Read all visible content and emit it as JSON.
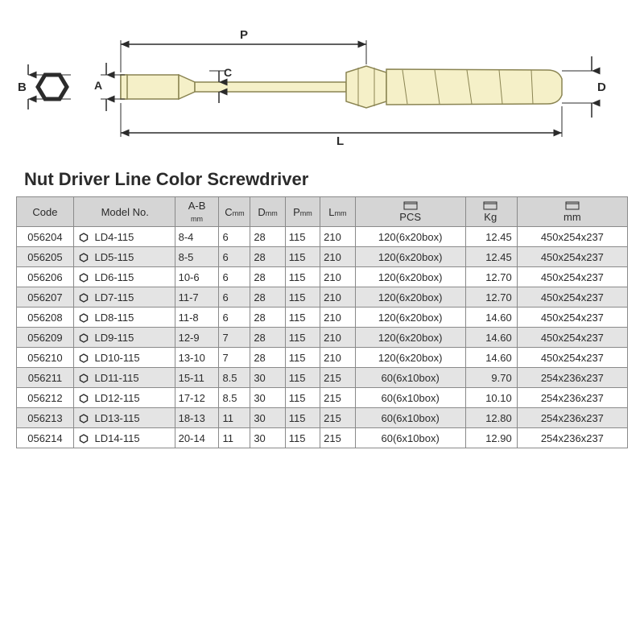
{
  "diagram": {
    "labels": {
      "B": "B",
      "A": "A",
      "C": "C",
      "P": "P",
      "D": "D",
      "L": "L"
    },
    "colors": {
      "outline": "#2b2b2b",
      "tool_fill": "#f5f0c8",
      "tool_stroke": "#8a8452",
      "dim_line": "#2b2b2b"
    }
  },
  "title": "Nut Driver Line Color Screwdriver",
  "table": {
    "headers": {
      "code": "Code",
      "model": "Model No.",
      "ab": "A-B",
      "ab_unit": "mm",
      "c": "C",
      "c_unit": "mm",
      "d": "D",
      "d_unit": "mm",
      "p": "P",
      "p_unit": "mm",
      "l": "L",
      "l_unit": "mm",
      "pcs": "PCS",
      "kg": "Kg",
      "dim_unit": "mm"
    },
    "rows": [
      {
        "code": "056204",
        "model": "LD4-115",
        "ab": "8-4",
        "c": "6",
        "d": "28",
        "p": "115",
        "l": "210",
        "pcs": "120(6x20box)",
        "kg": "12.45",
        "dim": "450x254x237"
      },
      {
        "code": "056205",
        "model": "LD5-115",
        "ab": "8-5",
        "c": "6",
        "d": "28",
        "p": "115",
        "l": "210",
        "pcs": "120(6x20box)",
        "kg": "12.45",
        "dim": "450x254x237"
      },
      {
        "code": "056206",
        "model": "LD6-115",
        "ab": "10-6",
        "c": "6",
        "d": "28",
        "p": "115",
        "l": "210",
        "pcs": "120(6x20box)",
        "kg": "12.70",
        "dim": "450x254x237"
      },
      {
        "code": "056207",
        "model": "LD7-115",
        "ab": "11-7",
        "c": "6",
        "d": "28",
        "p": "115",
        "l": "210",
        "pcs": "120(6x20box)",
        "kg": "12.70",
        "dim": "450x254x237"
      },
      {
        "code": "056208",
        "model": "LD8-115",
        "ab": "11-8",
        "c": "6",
        "d": "28",
        "p": "115",
        "l": "210",
        "pcs": "120(6x20box)",
        "kg": "14.60",
        "dim": "450x254x237"
      },
      {
        "code": "056209",
        "model": "LD9-115",
        "ab": "12-9",
        "c": "7",
        "d": "28",
        "p": "115",
        "l": "210",
        "pcs": "120(6x20box)",
        "kg": "14.60",
        "dim": "450x254x237"
      },
      {
        "code": "056210",
        "model": "LD10-115",
        "ab": "13-10",
        "c": "7",
        "d": "28",
        "p": "115",
        "l": "210",
        "pcs": "120(6x20box)",
        "kg": "14.60",
        "dim": "450x254x237"
      },
      {
        "code": "056211",
        "model": "LD11-115",
        "ab": "15-11",
        "c": "8.5",
        "d": "30",
        "p": "115",
        "l": "215",
        "pcs": "60(6x10box)",
        "kg": "9.70",
        "dim": "254x236x237"
      },
      {
        "code": "056212",
        "model": "LD12-115",
        "ab": "17-12",
        "c": "8.5",
        "d": "30",
        "p": "115",
        "l": "215",
        "pcs": "60(6x10box)",
        "kg": "10.10",
        "dim": "254x236x237"
      },
      {
        "code": "056213",
        "model": "LD13-115",
        "ab": "18-13",
        "c": "11",
        "d": "30",
        "p": "115",
        "l": "215",
        "pcs": "60(6x10box)",
        "kg": "12.80",
        "dim": "254x236x237"
      },
      {
        "code": "056214",
        "model": "LD14-115",
        "ab": "20-14",
        "c": "11",
        "d": "30",
        "p": "115",
        "l": "215",
        "pcs": "60(6x10box)",
        "kg": "12.90",
        "dim": "254x236x237"
      }
    ]
  }
}
